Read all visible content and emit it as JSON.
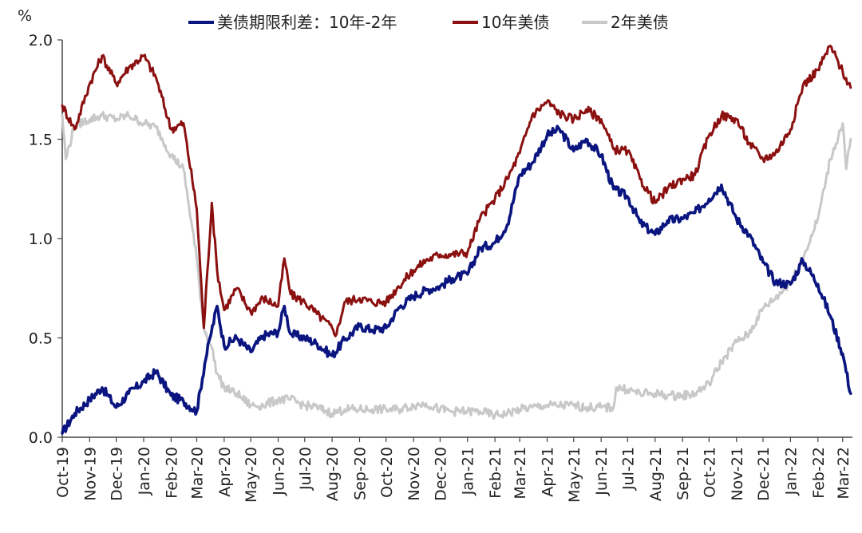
{
  "chart_data": {
    "type": "line",
    "unit_label": "%",
    "ylim": [
      0.0,
      2.0
    ],
    "yticks": [
      "0.0",
      "0.5",
      "1.0",
      "1.5",
      "2.0"
    ],
    "ytick_values": [
      0.0,
      0.5,
      1.0,
      1.5,
      2.0
    ],
    "grid": false,
    "legend_position": "top",
    "x_categories": [
      "Oct-19",
      "Nov-19",
      "Dec-19",
      "Jan-20",
      "Feb-20",
      "Mar-20",
      "Apr-20",
      "May-20",
      "Jun-20",
      "Jul-20",
      "Aug-20",
      "Sep-20",
      "Oct-20",
      "Nov-20",
      "Dec-20",
      "Jan-21",
      "Feb-21",
      "Mar-21",
      "Apr-21",
      "May-21",
      "Jun-21",
      "Jul-21",
      "Aug-21",
      "Sep-21",
      "Oct-21",
      "Nov-21",
      "Dec-21",
      "Jan-22",
      "Feb-22",
      "Mar-22"
    ],
    "series": [
      {
        "name": "美债期限利差：10年-2年",
        "color": "#0a1580",
        "x": [
          "2019-10-01",
          "2019-10-15",
          "2019-11-01",
          "2019-11-15",
          "2019-12-01",
          "2019-12-15",
          "2020-01-01",
          "2020-01-15",
          "2020-02-01",
          "2020-02-15",
          "2020-03-01",
          "2020-03-10",
          "2020-03-16",
          "2020-03-24",
          "2020-04-01",
          "2020-04-15",
          "2020-05-01",
          "2020-05-15",
          "2020-06-01",
          "2020-06-08",
          "2020-06-15",
          "2020-07-01",
          "2020-07-15",
          "2020-08-01",
          "2020-08-15",
          "2020-09-01",
          "2020-09-15",
          "2020-10-01",
          "2020-10-15",
          "2020-11-01",
          "2020-11-15",
          "2020-12-01",
          "2020-12-15",
          "2021-01-01",
          "2021-01-15",
          "2021-02-01",
          "2021-02-15",
          "2021-03-01",
          "2021-03-15",
          "2021-04-01",
          "2021-04-15",
          "2021-05-01",
          "2021-05-15",
          "2021-06-01",
          "2021-06-15",
          "2021-07-01",
          "2021-07-15",
          "2021-08-01",
          "2021-08-15",
          "2021-09-01",
          "2021-09-15",
          "2021-10-01",
          "2021-10-15",
          "2021-11-01",
          "2021-11-15",
          "2021-12-01",
          "2021-12-15",
          "2022-01-01",
          "2022-01-15",
          "2022-02-01",
          "2022-02-15",
          "2022-03-01",
          "2022-03-10"
        ],
        "values": [
          0.02,
          0.12,
          0.19,
          0.25,
          0.15,
          0.22,
          0.28,
          0.33,
          0.21,
          0.18,
          0.13,
          0.37,
          0.5,
          0.66,
          0.46,
          0.5,
          0.43,
          0.51,
          0.53,
          0.66,
          0.52,
          0.5,
          0.47,
          0.41,
          0.49,
          0.56,
          0.54,
          0.55,
          0.65,
          0.71,
          0.74,
          0.76,
          0.8,
          0.82,
          0.95,
          0.98,
          1.07,
          1.32,
          1.38,
          1.52,
          1.55,
          1.44,
          1.5,
          1.42,
          1.25,
          1.21,
          1.08,
          1.02,
          1.09,
          1.1,
          1.13,
          1.2,
          1.27,
          1.1,
          1.02,
          0.88,
          0.78,
          0.77,
          0.89,
          0.77,
          0.61,
          0.42,
          0.22
        ]
      },
      {
        "name": "10年美债",
        "color": "#8b1010",
        "x": [
          "2019-10-01",
          "2019-10-15",
          "2019-11-01",
          "2019-11-15",
          "2019-12-01",
          "2019-12-15",
          "2020-01-01",
          "2020-01-15",
          "2020-02-01",
          "2020-02-15",
          "2020-03-01",
          "2020-03-09",
          "2020-03-18",
          "2020-03-24",
          "2020-04-01",
          "2020-04-15",
          "2020-05-01",
          "2020-05-15",
          "2020-06-01",
          "2020-06-08",
          "2020-06-15",
          "2020-07-01",
          "2020-07-15",
          "2020-08-01",
          "2020-08-06",
          "2020-08-15",
          "2020-09-01",
          "2020-09-15",
          "2020-10-01",
          "2020-10-15",
          "2020-11-01",
          "2020-11-15",
          "2020-12-01",
          "2020-12-15",
          "2021-01-01",
          "2021-01-15",
          "2021-02-01",
          "2021-02-15",
          "2021-03-01",
          "2021-03-15",
          "2021-04-01",
          "2021-04-15",
          "2021-05-01",
          "2021-05-15",
          "2021-06-01",
          "2021-06-15",
          "2021-07-01",
          "2021-07-15",
          "2021-08-01",
          "2021-08-15",
          "2021-09-01",
          "2021-09-15",
          "2021-10-01",
          "2021-10-15",
          "2021-11-01",
          "2021-11-15",
          "2021-12-01",
          "2021-12-15",
          "2022-01-01",
          "2022-01-15",
          "2022-02-01",
          "2022-02-15",
          "2022-03-01",
          "2022-03-10"
        ],
        "values": [
          1.67,
          1.55,
          1.78,
          1.92,
          1.78,
          1.86,
          1.92,
          1.81,
          1.55,
          1.58,
          1.15,
          0.55,
          1.18,
          0.84,
          0.64,
          0.75,
          0.63,
          0.7,
          0.66,
          0.9,
          0.72,
          0.68,
          0.62,
          0.55,
          0.52,
          0.68,
          0.7,
          0.68,
          0.68,
          0.76,
          0.84,
          0.89,
          0.92,
          0.92,
          0.93,
          1.1,
          1.2,
          1.3,
          1.43,
          1.62,
          1.69,
          1.63,
          1.6,
          1.65,
          1.6,
          1.45,
          1.44,
          1.3,
          1.18,
          1.25,
          1.3,
          1.32,
          1.52,
          1.62,
          1.6,
          1.48,
          1.4,
          1.43,
          1.55,
          1.77,
          1.85,
          1.97,
          1.84,
          1.76
        ]
      },
      {
        "name": "2年美债",
        "color": "#c8c8c8",
        "x": [
          "2019-10-01",
          "2019-10-05",
          "2019-10-15",
          "2019-11-01",
          "2019-11-15",
          "2019-12-01",
          "2019-12-15",
          "2020-01-01",
          "2020-01-15",
          "2020-02-01",
          "2020-02-15",
          "2020-03-01",
          "2020-03-09",
          "2020-03-18",
          "2020-03-24",
          "2020-04-01",
          "2020-04-15",
          "2020-05-01",
          "2020-05-15",
          "2020-06-01",
          "2020-06-15",
          "2020-07-01",
          "2020-07-15",
          "2020-08-01",
          "2020-08-15",
          "2020-09-01",
          "2020-09-15",
          "2020-10-01",
          "2020-10-15",
          "2020-11-01",
          "2020-11-15",
          "2020-12-01",
          "2020-12-15",
          "2021-01-01",
          "2021-01-15",
          "2021-02-01",
          "2021-02-15",
          "2021-03-01",
          "2021-03-15",
          "2021-04-01",
          "2021-04-15",
          "2021-05-01",
          "2021-05-15",
          "2021-06-01",
          "2021-06-15",
          "2021-06-18",
          "2021-07-01",
          "2021-07-15",
          "2021-08-01",
          "2021-08-15",
          "2021-09-01",
          "2021-09-15",
          "2021-10-01",
          "2021-10-15",
          "2021-11-01",
          "2021-11-15",
          "2021-12-01",
          "2021-12-15",
          "2022-01-01",
          "2022-01-15",
          "2022-02-01",
          "2022-02-15",
          "2022-03-01",
          "2022-03-05",
          "2022-03-10"
        ],
        "values": [
          1.62,
          1.4,
          1.57,
          1.6,
          1.62,
          1.6,
          1.62,
          1.58,
          1.56,
          1.42,
          1.35,
          0.9,
          0.55,
          0.45,
          0.32,
          0.25,
          0.22,
          0.16,
          0.16,
          0.19,
          0.19,
          0.16,
          0.15,
          0.12,
          0.14,
          0.14,
          0.14,
          0.14,
          0.14,
          0.16,
          0.17,
          0.14,
          0.13,
          0.13,
          0.13,
          0.11,
          0.12,
          0.14,
          0.15,
          0.16,
          0.16,
          0.16,
          0.15,
          0.15,
          0.15,
          0.25,
          0.24,
          0.22,
          0.22,
          0.21,
          0.21,
          0.22,
          0.27,
          0.38,
          0.48,
          0.52,
          0.65,
          0.7,
          0.78,
          0.9,
          1.1,
          1.4,
          1.58,
          1.35,
          1.5
        ]
      }
    ]
  }
}
